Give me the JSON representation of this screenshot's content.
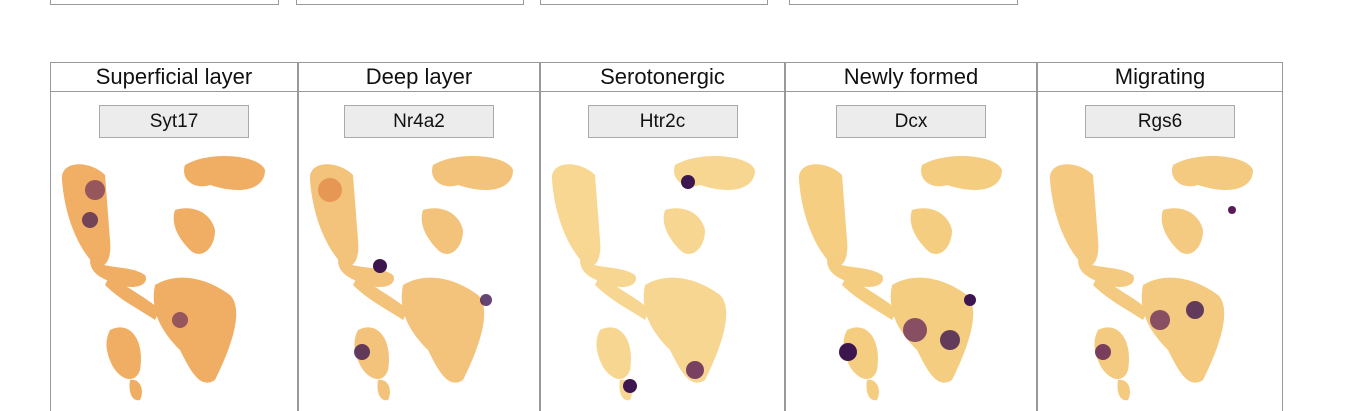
{
  "panels": [
    {
      "title": "Superficial layer",
      "gene": "Syt17"
    },
    {
      "title": "Deep layer",
      "gene": "Nr4a2"
    },
    {
      "title": "Serotonergic",
      "gene": "Htr2c"
    },
    {
      "title": "Newly formed",
      "gene": "Dcx"
    },
    {
      "title": "Migrating",
      "gene": "Rgs6"
    }
  ]
}
